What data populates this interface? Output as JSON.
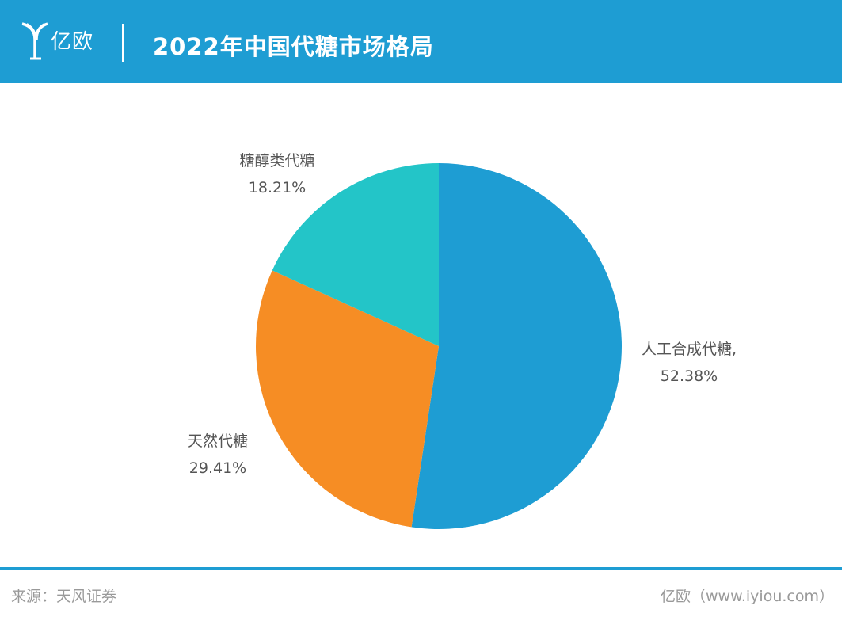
{
  "header": {
    "logo_text": "亿欧",
    "title": "2022年中国代糖市场格局"
  },
  "chart_data": {
    "type": "pie",
    "title": "2022年中国代糖市场格局",
    "slices": [
      {
        "label": "人工合成代糖,",
        "value": 52.38,
        "display": "52.38%",
        "color": "#1e9dd3"
      },
      {
        "label": "天然代糖",
        "value": 29.41,
        "display": "29.41%",
        "color": "#f68d24"
      },
      {
        "label": "糖醇类代糖",
        "value": 18.21,
        "display": "18.21%",
        "color": "#23c5c8"
      }
    ],
    "start_angle": "12 o'clock",
    "direction": "clockwise"
  },
  "footer": {
    "source": "来源：天风证券",
    "credit": "亿欧（www.iyiou.com）"
  }
}
